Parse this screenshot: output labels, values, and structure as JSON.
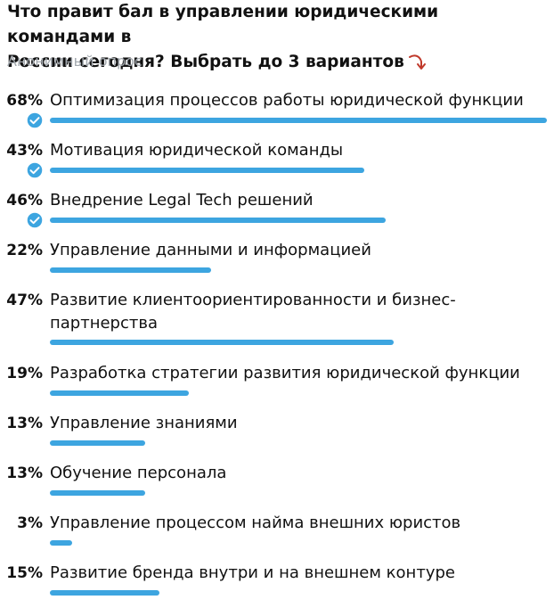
{
  "question": {
    "line1": "Что правит бал в управлении юридическими командами в",
    "line2": "России сегодня? Выбрать до 3 вариантов"
  },
  "poll_type": "Анонимный опрос",
  "colors": {
    "bar": "#3da5e0",
    "arrow": "#c0392b",
    "muted": "#a2a8ae"
  },
  "icons": {
    "check": "check-circle-icon",
    "arrow": "curved-arrow-down-icon"
  },
  "options": [
    {
      "percent": "68%",
      "value": 68,
      "label": "Оптимизация процессов работы юридической функции",
      "selected": true
    },
    {
      "percent": "43%",
      "value": 43,
      "label": "Мотивация юридической команды",
      "selected": true
    },
    {
      "percent": "46%",
      "value": 46,
      "label": "Внедрение Legal Tech решений",
      "selected": true
    },
    {
      "percent": "22%",
      "value": 22,
      "label": "Управление данными и информацией",
      "selected": false
    },
    {
      "percent": "47%",
      "value": 47,
      "label_line1": "Развитие клиентоориентированности и бизнес-",
      "label_line2": "партнерства",
      "selected": false
    },
    {
      "percent": "19%",
      "value": 19,
      "label": "Разработка стратегии развития юридической функции",
      "selected": false
    },
    {
      "percent": "13%",
      "value": 13,
      "label": "Управление знаниями",
      "selected": false
    },
    {
      "percent": "13%",
      "value": 13,
      "label": "Обучение персонала",
      "selected": false
    },
    {
      "percent": "3%",
      "value": 3,
      "label": "Управление процессом найма внешних юристов",
      "selected": false
    },
    {
      "percent": "15%",
      "value": 15,
      "label": "Развитие бренда внутри и на внешнем контуре",
      "selected": false
    }
  ]
}
